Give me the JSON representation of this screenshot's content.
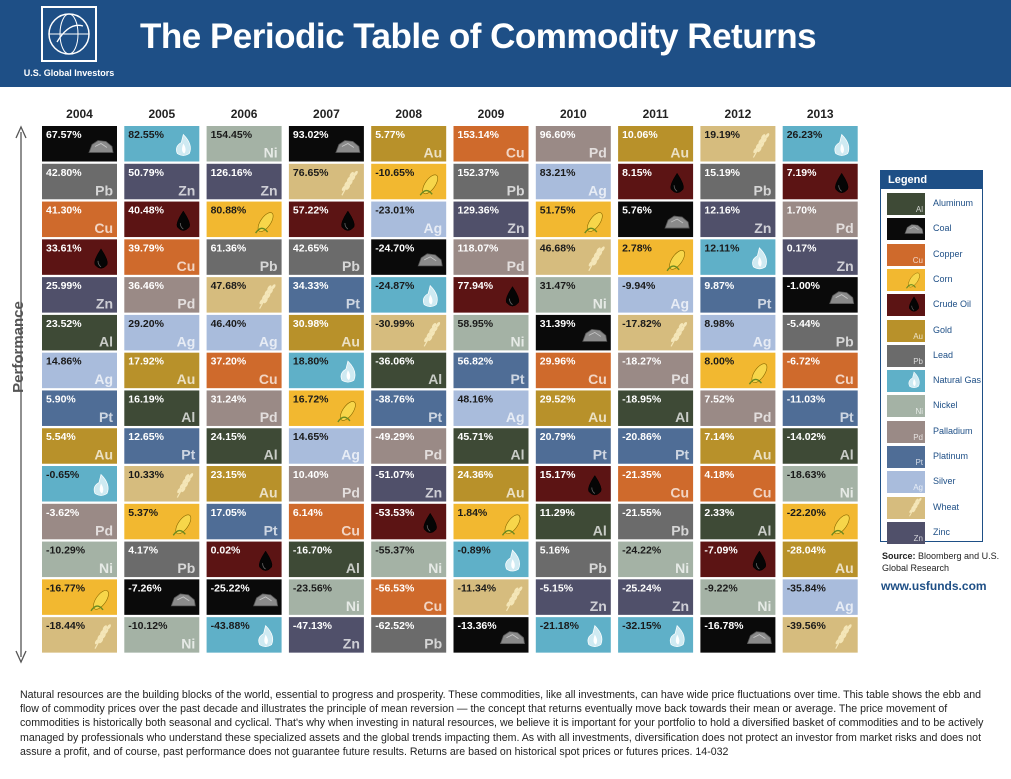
{
  "header": {
    "title": "The Periodic Table of Commodity Returns",
    "logo_text": "U.S. Global Investors"
  },
  "y_axis_label": "Performance",
  "legend": {
    "title": "Legend",
    "items": [
      {
        "name": "Aluminum",
        "symbol": "Al",
        "color": "#3e4a36",
        "icon": "none"
      },
      {
        "name": "Coal",
        "symbol": "",
        "color": "#0a0a0a",
        "icon": "coal-rock-icon"
      },
      {
        "name": "Copper",
        "symbol": "Cu",
        "color": "#cf6a2c",
        "icon": "none"
      },
      {
        "name": "Corn",
        "symbol": "",
        "color": "#f2b830",
        "icon": "corn-icon"
      },
      {
        "name": "Crude Oil",
        "symbol": "",
        "color": "#5c1414",
        "icon": "oil-drop-icon"
      },
      {
        "name": "Gold",
        "symbol": "Au",
        "color": "#b8912a",
        "icon": "none"
      },
      {
        "name": "Lead",
        "symbol": "Pb",
        "color": "#6b6b6b",
        "icon": "none"
      },
      {
        "name": "Natural Gas",
        "symbol": "",
        "color": "#5fb0c8",
        "icon": "flame-icon"
      },
      {
        "name": "Nickel",
        "symbol": "Ni",
        "color": "#a4b2a5",
        "icon": "none"
      },
      {
        "name": "Palladium",
        "symbol": "Pd",
        "color": "#9a8a86",
        "icon": "none"
      },
      {
        "name": "Platinum",
        "symbol": "Pt",
        "color": "#4f6d96",
        "icon": "none"
      },
      {
        "name": "Silver",
        "symbol": "Ag",
        "color": "#a9bcdc",
        "icon": "none"
      },
      {
        "name": "Wheat",
        "symbol": "",
        "color": "#d6bc7e",
        "icon": "wheat-icon"
      },
      {
        "name": "Zinc",
        "symbol": "Zn",
        "color": "#50506a",
        "icon": "none"
      }
    ]
  },
  "source": {
    "label": "Source:",
    "text": "Bloomberg and U.S. Global Research"
  },
  "website": "www.usfunds.com",
  "footnote": "Natural resources are the building blocks of the world, essential to progress and prosperity. These commodities, like all investments, can have wide price fluctuations over time. This table shows the ebb and flow of commodity prices over the past decade and illustrates the principle of mean reversion — the concept that returns eventually move back towards their mean or average. The price movement of commodities is historically both seasonal and cyclical. That's why when investing in natural resources, we believe it is important for your portfolio to hold a diversified basket of commodities and to be actively managed by professionals who understand these specialized assets and the global trends impacting them. As with all investments, diversification does not protect an investor from market risks and does not assure a profit, and of course, past performance does not guarantee future results. Returns are based on historical spot prices or futures prices. 14-032",
  "chart_data": {
    "type": "table",
    "title": "The Periodic Table of Commodity Returns",
    "ylabel": "Performance",
    "years": [
      "2004",
      "2005",
      "2006",
      "2007",
      "2008",
      "2009",
      "2010",
      "2011",
      "2012",
      "2013"
    ],
    "columns": [
      [
        {
          "value": "67.57%",
          "commodity": "Coal",
          "symbol": ""
        },
        {
          "value": "42.80%",
          "commodity": "Lead",
          "symbol": "Pb"
        },
        {
          "value": "41.30%",
          "commodity": "Copper",
          "symbol": "Cu"
        },
        {
          "value": "33.61%",
          "commodity": "Crude Oil",
          "symbol": ""
        },
        {
          "value": "25.99%",
          "commodity": "Zinc",
          "symbol": "Zn"
        },
        {
          "value": "23.52%",
          "commodity": "Aluminum",
          "symbol": "Al"
        },
        {
          "value": "14.86%",
          "commodity": "Silver",
          "symbol": "Ag"
        },
        {
          "value": "5.90%",
          "commodity": "Platinum",
          "symbol": "Pt"
        },
        {
          "value": "5.54%",
          "commodity": "Gold",
          "symbol": "Au"
        },
        {
          "value": "-0.65%",
          "commodity": "Natural Gas",
          "symbol": ""
        },
        {
          "value": "-3.62%",
          "commodity": "Palladium",
          "symbol": "Pd"
        },
        {
          "value": "-10.29%",
          "commodity": "Nickel",
          "symbol": "Ni"
        },
        {
          "value": "-16.77%",
          "commodity": "Corn",
          "symbol": ""
        },
        {
          "value": "-18.44%",
          "commodity": "Wheat",
          "symbol": ""
        }
      ],
      [
        {
          "value": "82.55%",
          "commodity": "Natural Gas",
          "symbol": ""
        },
        {
          "value": "50.79%",
          "commodity": "Zinc",
          "symbol": "Zn"
        },
        {
          "value": "40.48%",
          "commodity": "Crude Oil",
          "symbol": ""
        },
        {
          "value": "39.79%",
          "commodity": "Copper",
          "symbol": "Cu"
        },
        {
          "value": "36.46%",
          "commodity": "Palladium",
          "symbol": "Pd"
        },
        {
          "value": "29.20%",
          "commodity": "Silver",
          "symbol": "Ag"
        },
        {
          "value": "17.92%",
          "commodity": "Gold",
          "symbol": "Au"
        },
        {
          "value": "16.19%",
          "commodity": "Aluminum",
          "symbol": "Al"
        },
        {
          "value": "12.65%",
          "commodity": "Platinum",
          "symbol": "Pt"
        },
        {
          "value": "10.33%",
          "commodity": "Wheat",
          "symbol": ""
        },
        {
          "value": "5.37%",
          "commodity": "Corn",
          "symbol": ""
        },
        {
          "value": "4.17%",
          "commodity": "Lead",
          "symbol": "Pb"
        },
        {
          "value": "-7.26%",
          "commodity": "Coal",
          "symbol": ""
        },
        {
          "value": "-10.12%",
          "commodity": "Nickel",
          "symbol": "Ni"
        }
      ],
      [
        {
          "value": "154.45%",
          "commodity": "Nickel",
          "symbol": "Ni"
        },
        {
          "value": "126.16%",
          "commodity": "Zinc",
          "symbol": "Zn"
        },
        {
          "value": "80.88%",
          "commodity": "Corn",
          "symbol": ""
        },
        {
          "value": "61.36%",
          "commodity": "Lead",
          "symbol": "Pb"
        },
        {
          "value": "47.68%",
          "commodity": "Wheat",
          "symbol": ""
        },
        {
          "value": "46.40%",
          "commodity": "Silver",
          "symbol": "Ag"
        },
        {
          "value": "37.20%",
          "commodity": "Copper",
          "symbol": "Cu"
        },
        {
          "value": "31.24%",
          "commodity": "Palladium",
          "symbol": "Pd"
        },
        {
          "value": "24.15%",
          "commodity": "Aluminum",
          "symbol": "Al"
        },
        {
          "value": "23.15%",
          "commodity": "Gold",
          "symbol": "Au"
        },
        {
          "value": "17.05%",
          "commodity": "Platinum",
          "symbol": "Pt"
        },
        {
          "value": "0.02%",
          "commodity": "Crude Oil",
          "symbol": ""
        },
        {
          "value": "-25.22%",
          "commodity": "Coal",
          "symbol": ""
        },
        {
          "value": "-43.88%",
          "commodity": "Natural Gas",
          "symbol": ""
        }
      ],
      [
        {
          "value": "93.02%",
          "commodity": "Coal",
          "symbol": ""
        },
        {
          "value": "76.65%",
          "commodity": "Wheat",
          "symbol": ""
        },
        {
          "value": "57.22%",
          "commodity": "Crude Oil",
          "symbol": ""
        },
        {
          "value": "42.65%",
          "commodity": "Lead",
          "symbol": "Pb"
        },
        {
          "value": "34.33%",
          "commodity": "Platinum",
          "symbol": "Pt"
        },
        {
          "value": "30.98%",
          "commodity": "Gold",
          "symbol": "Au"
        },
        {
          "value": "18.80%",
          "commodity": "Natural Gas",
          "symbol": ""
        },
        {
          "value": "16.72%",
          "commodity": "Corn",
          "symbol": ""
        },
        {
          "value": "14.65%",
          "commodity": "Silver",
          "symbol": "Ag"
        },
        {
          "value": "10.40%",
          "commodity": "Palladium",
          "symbol": "Pd"
        },
        {
          "value": "6.14%",
          "commodity": "Copper",
          "symbol": "Cu"
        },
        {
          "value": "-16.70%",
          "commodity": "Aluminum",
          "symbol": "Al"
        },
        {
          "value": "-23.56%",
          "commodity": "Nickel",
          "symbol": "Ni"
        },
        {
          "value": "-47.13%",
          "commodity": "Zinc",
          "symbol": "Zn"
        }
      ],
      [
        {
          "value": "5.77%",
          "commodity": "Gold",
          "symbol": "Au"
        },
        {
          "value": "-10.65%",
          "commodity": "Corn",
          "symbol": ""
        },
        {
          "value": "-23.01%",
          "commodity": "Silver",
          "symbol": "Ag"
        },
        {
          "value": "-24.70%",
          "commodity": "Coal",
          "symbol": ""
        },
        {
          "value": "-24.87%",
          "commodity": "Natural Gas",
          "symbol": ""
        },
        {
          "value": "-30.99%",
          "commodity": "Wheat",
          "symbol": ""
        },
        {
          "value": "-36.06%",
          "commodity": "Aluminum",
          "symbol": "Al"
        },
        {
          "value": "-38.76%",
          "commodity": "Platinum",
          "symbol": "Pt"
        },
        {
          "value": "-49.29%",
          "commodity": "Palladium",
          "symbol": "Pd"
        },
        {
          "value": "-51.07%",
          "commodity": "Zinc",
          "symbol": "Zn"
        },
        {
          "value": "-53.53%",
          "commodity": "Crude Oil",
          "symbol": ""
        },
        {
          "value": "-55.37%",
          "commodity": "Nickel",
          "symbol": "Ni"
        },
        {
          "value": "-56.53%",
          "commodity": "Copper",
          "symbol": "Cu"
        },
        {
          "value": "-62.52%",
          "commodity": "Lead",
          "symbol": "Pb"
        }
      ],
      [
        {
          "value": "153.14%",
          "commodity": "Copper",
          "symbol": "Cu"
        },
        {
          "value": "152.37%",
          "commodity": "Lead",
          "symbol": "Pb"
        },
        {
          "value": "129.36%",
          "commodity": "Zinc",
          "symbol": "Zn"
        },
        {
          "value": "118.07%",
          "commodity": "Palladium",
          "symbol": "Pd"
        },
        {
          "value": "77.94%",
          "commodity": "Crude Oil",
          "symbol": ""
        },
        {
          "value": "58.95%",
          "commodity": "Nickel",
          "symbol": "Ni"
        },
        {
          "value": "56.82%",
          "commodity": "Platinum",
          "symbol": "Pt"
        },
        {
          "value": "48.16%",
          "commodity": "Silver",
          "symbol": "Ag"
        },
        {
          "value": "45.71%",
          "commodity": "Aluminum",
          "symbol": "Al"
        },
        {
          "value": "24.36%",
          "commodity": "Gold",
          "symbol": "Au"
        },
        {
          "value": "1.84%",
          "commodity": "Corn",
          "symbol": ""
        },
        {
          "value": "-0.89%",
          "commodity": "Natural Gas",
          "symbol": ""
        },
        {
          "value": "-11.34%",
          "commodity": "Wheat",
          "symbol": ""
        },
        {
          "value": "-13.36%",
          "commodity": "Coal",
          "symbol": ""
        }
      ],
      [
        {
          "value": "96.60%",
          "commodity": "Palladium",
          "symbol": "Pd"
        },
        {
          "value": "83.21%",
          "commodity": "Silver",
          "symbol": "Ag"
        },
        {
          "value": "51.75%",
          "commodity": "Corn",
          "symbol": ""
        },
        {
          "value": "46.68%",
          "commodity": "Wheat",
          "symbol": ""
        },
        {
          "value": "31.47%",
          "commodity": "Nickel",
          "symbol": "Ni"
        },
        {
          "value": "31.39%",
          "commodity": "Coal",
          "symbol": ""
        },
        {
          "value": "29.96%",
          "commodity": "Copper",
          "symbol": "Cu"
        },
        {
          "value": "29.52%",
          "commodity": "Gold",
          "symbol": "Au"
        },
        {
          "value": "20.79%",
          "commodity": "Platinum",
          "symbol": "Pt"
        },
        {
          "value": "15.17%",
          "commodity": "Crude Oil",
          "symbol": ""
        },
        {
          "value": "11.29%",
          "commodity": "Aluminum",
          "symbol": "Al"
        },
        {
          "value": "5.16%",
          "commodity": "Lead",
          "symbol": "Pb"
        },
        {
          "value": "-5.15%",
          "commodity": "Zinc",
          "symbol": "Zn"
        },
        {
          "value": "-21.18%",
          "commodity": "Natural Gas",
          "symbol": ""
        }
      ],
      [
        {
          "value": "10.06%",
          "commodity": "Gold",
          "symbol": "Au"
        },
        {
          "value": "8.15%",
          "commodity": "Crude Oil",
          "symbol": ""
        },
        {
          "value": "5.76%",
          "commodity": "Coal",
          "symbol": ""
        },
        {
          "value": "2.78%",
          "commodity": "Corn",
          "symbol": ""
        },
        {
          "value": "-9.94%",
          "commodity": "Silver",
          "symbol": "Ag"
        },
        {
          "value": "-17.82%",
          "commodity": "Wheat",
          "symbol": ""
        },
        {
          "value": "-18.27%",
          "commodity": "Palladium",
          "symbol": "Pd"
        },
        {
          "value": "-18.95%",
          "commodity": "Aluminum",
          "symbol": "Al"
        },
        {
          "value": "-20.86%",
          "commodity": "Platinum",
          "symbol": "Pt"
        },
        {
          "value": "-21.35%",
          "commodity": "Copper",
          "symbol": "Cu"
        },
        {
          "value": "-21.55%",
          "commodity": "Lead",
          "symbol": "Pb"
        },
        {
          "value": "-24.22%",
          "commodity": "Nickel",
          "symbol": "Ni"
        },
        {
          "value": "-25.24%",
          "commodity": "Zinc",
          "symbol": "Zn"
        },
        {
          "value": "-32.15%",
          "commodity": "Natural Gas",
          "symbol": ""
        }
      ],
      [
        {
          "value": "19.19%",
          "commodity": "Wheat",
          "symbol": ""
        },
        {
          "value": "15.19%",
          "commodity": "Lead",
          "symbol": "Pb"
        },
        {
          "value": "12.16%",
          "commodity": "Zinc",
          "symbol": "Zn"
        },
        {
          "value": "12.11%",
          "commodity": "Natural Gas",
          "symbol": ""
        },
        {
          "value": "9.87%",
          "commodity": "Platinum",
          "symbol": "Pt"
        },
        {
          "value": "8.98%",
          "commodity": "Silver",
          "symbol": "Ag"
        },
        {
          "value": "8.00%",
          "commodity": "Corn",
          "symbol": ""
        },
        {
          "value": "7.52%",
          "commodity": "Palladium",
          "symbol": "Pd"
        },
        {
          "value": "7.14%",
          "commodity": "Gold",
          "symbol": "Au"
        },
        {
          "value": "4.18%",
          "commodity": "Copper",
          "symbol": "Cu"
        },
        {
          "value": "2.33%",
          "commodity": "Aluminum",
          "symbol": "Al"
        },
        {
          "value": "-7.09%",
          "commodity": "Crude Oil",
          "symbol": ""
        },
        {
          "value": "-9.22%",
          "commodity": "Nickel",
          "symbol": "Ni"
        },
        {
          "value": "-16.78%",
          "commodity": "Coal",
          "symbol": ""
        }
      ],
      [
        {
          "value": "26.23%",
          "commodity": "Natural Gas",
          "symbol": ""
        },
        {
          "value": "7.19%",
          "commodity": "Crude Oil",
          "symbol": ""
        },
        {
          "value": "1.70%",
          "commodity": "Palladium",
          "symbol": "Pd"
        },
        {
          "value": "0.17%",
          "commodity": "Zinc",
          "symbol": "Zn"
        },
        {
          "value": "-1.00%",
          "commodity": "Coal",
          "symbol": ""
        },
        {
          "value": "-5.44%",
          "commodity": "Lead",
          "symbol": "Pb"
        },
        {
          "value": "-6.72%",
          "commodity": "Copper",
          "symbol": "Cu"
        },
        {
          "value": "-11.03%",
          "commodity": "Platinum",
          "symbol": "Pt"
        },
        {
          "value": "-14.02%",
          "commodity": "Aluminum",
          "symbol": "Al"
        },
        {
          "value": "-18.63%",
          "commodity": "Nickel",
          "symbol": "Ni"
        },
        {
          "value": "-22.20%",
          "commodity": "Corn",
          "symbol": ""
        },
        {
          "value": "-28.04%",
          "commodity": "Gold",
          "symbol": "Au"
        },
        {
          "value": "-35.84%",
          "commodity": "Silver",
          "symbol": "Ag"
        },
        {
          "value": "-39.56%",
          "commodity": "Wheat",
          "symbol": ""
        }
      ]
    ]
  }
}
